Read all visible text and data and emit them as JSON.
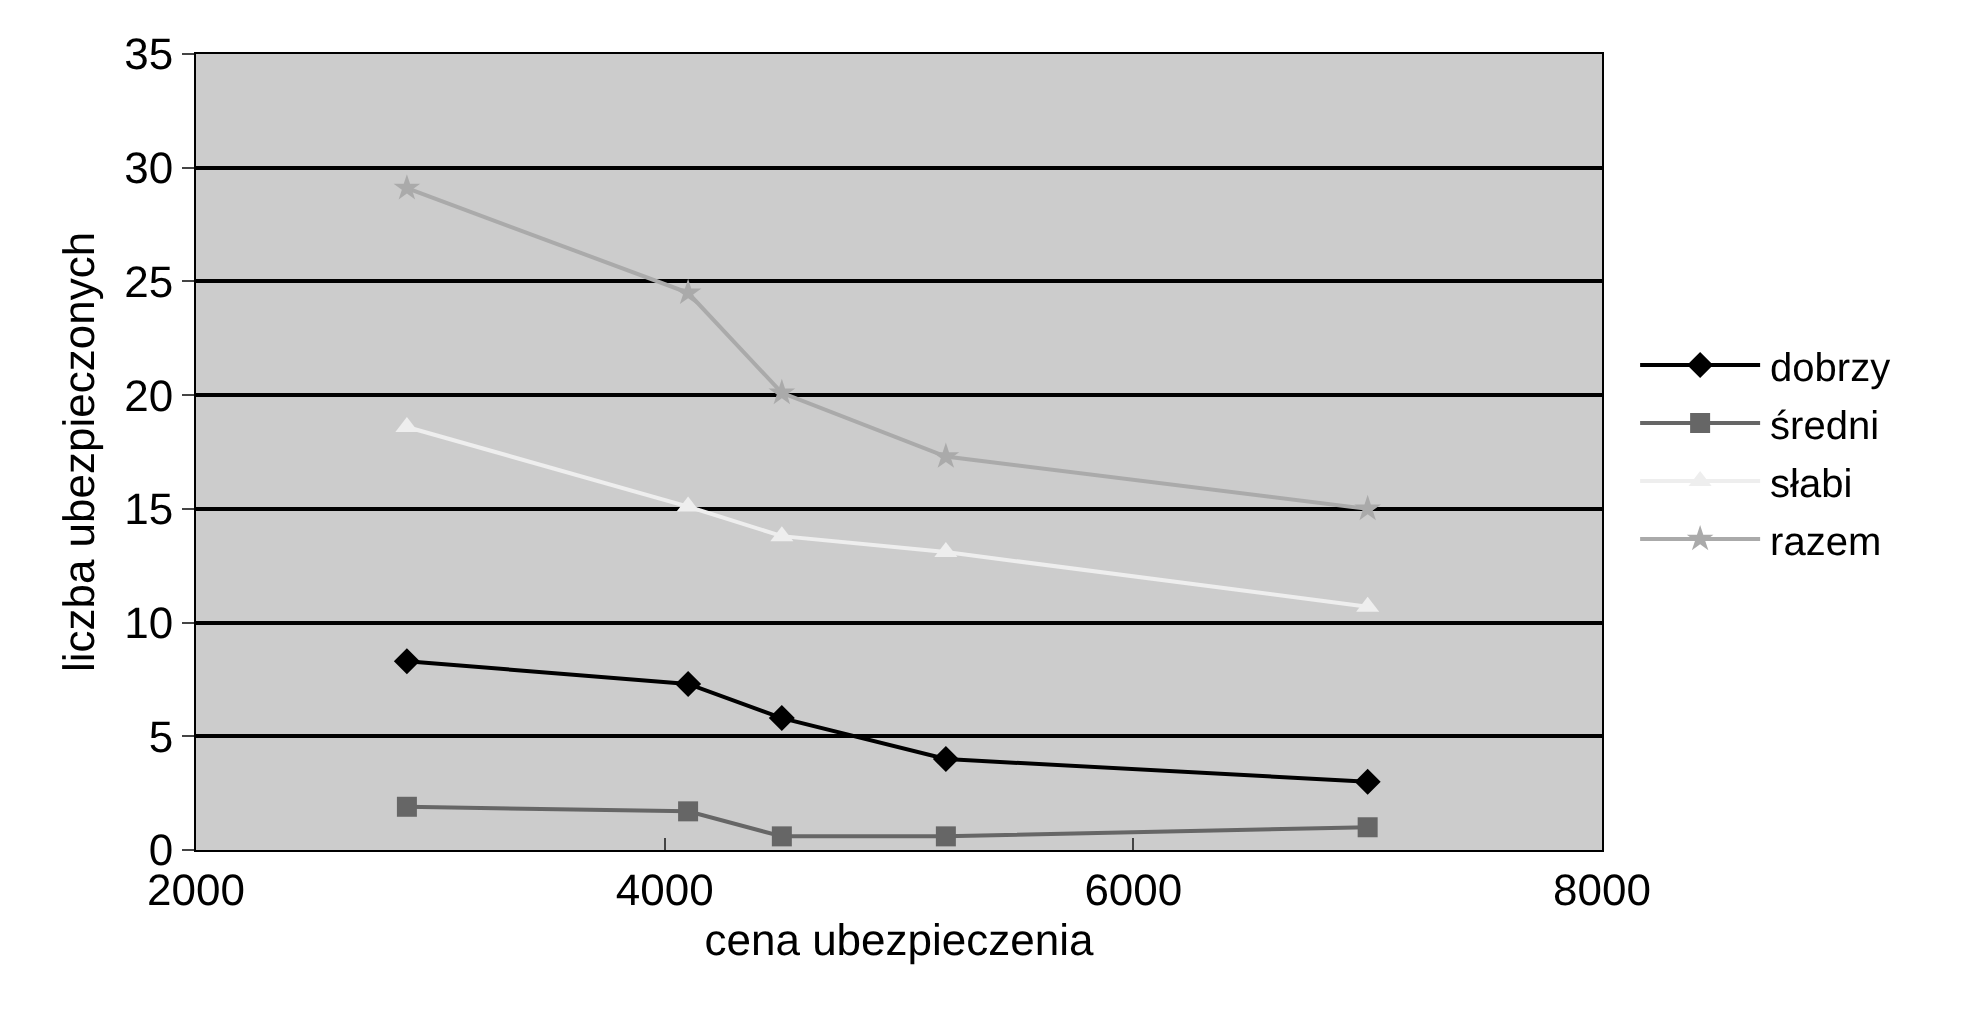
{
  "chart_data": {
    "type": "line",
    "xlabel": "cena ubezpieczenia",
    "ylabel": "liczba ubezpieczonych",
    "x": [
      2900,
      4100,
      4500,
      5200,
      7000
    ],
    "series": [
      {
        "name": "dobrzy",
        "color": "#000000",
        "marker": "diamond",
        "values": [
          8.3,
          7.3,
          5.8,
          4.0,
          3.0
        ]
      },
      {
        "name": "średni",
        "color": "#666666",
        "marker": "square",
        "values": [
          1.9,
          1.7,
          0.6,
          0.6,
          1.0
        ]
      },
      {
        "name": "słabi",
        "color": "#eeeeee",
        "marker": "triangle",
        "values": [
          18.6,
          15.1,
          13.8,
          13.1,
          10.7
        ]
      },
      {
        "name": "razem",
        "color": "#aaaaaa",
        "marker": "star",
        "values": [
          29.1,
          24.5,
          20.1,
          17.3,
          15.0
        ]
      }
    ],
    "xlim": [
      2000,
      8000
    ],
    "xticks": [
      2000,
      4000,
      6000,
      8000
    ],
    "ylim": [
      0,
      35
    ],
    "yticks": [
      0,
      5,
      10,
      15,
      20,
      25,
      30,
      35
    ],
    "grid": "y",
    "legend": "right",
    "line_style": "solid"
  }
}
